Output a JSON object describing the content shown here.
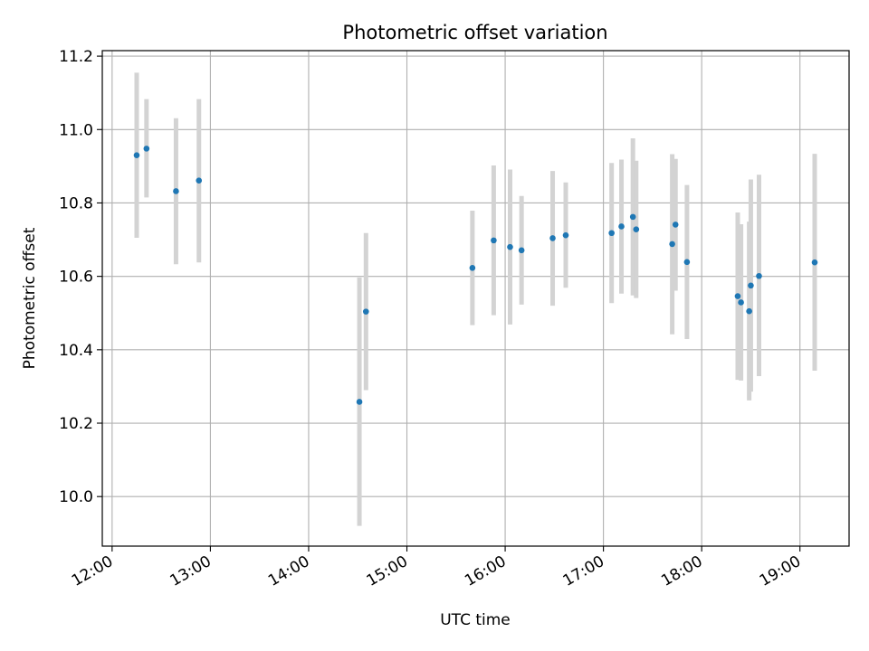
{
  "chart_data": {
    "type": "scatter",
    "title": "Photometric offset variation",
    "xlabel": "UTC time",
    "ylabel": "Photometric offset",
    "x_type": "time",
    "x_tick_labels": [
      "12:00",
      "13:00",
      "14:00",
      "15:00",
      "16:00",
      "17:00",
      "18:00",
      "19:00"
    ],
    "y_tick_labels": [
      "10.0",
      "10.2",
      "10.4",
      "10.6",
      "10.8",
      "11.0",
      "11.2"
    ],
    "xlim": [
      "11:54",
      "19:30"
    ],
    "ylim": [
      9.865,
      11.215
    ],
    "grid": true,
    "colors": {
      "point": "#1f77b4",
      "error_bar": "#d3d3d3",
      "grid": "#b0b0b0"
    },
    "points": [
      {
        "x": "12:15",
        "y": 10.93,
        "err_low": 10.705,
        "err_high": 11.155
      },
      {
        "x": "12:21",
        "y": 10.948,
        "err_low": 10.815,
        "err_high": 11.083
      },
      {
        "x": "12:39",
        "y": 10.832,
        "err_low": 10.633,
        "err_high": 11.031
      },
      {
        "x": "12:53",
        "y": 10.861,
        "err_low": 10.638,
        "err_high": 11.083
      },
      {
        "x": "14:31",
        "y": 10.258,
        "err_low": 9.92,
        "err_high": 10.597
      },
      {
        "x": "14:35",
        "y": 10.504,
        "err_low": 10.29,
        "err_high": 10.718
      },
      {
        "x": "15:40",
        "y": 10.623,
        "err_low": 10.467,
        "err_high": 10.779
      },
      {
        "x": "15:53",
        "y": 10.698,
        "err_low": 10.494,
        "err_high": 10.902
      },
      {
        "x": "16:03",
        "y": 10.68,
        "err_low": 10.469,
        "err_high": 10.891
      },
      {
        "x": "16:10",
        "y": 10.671,
        "err_low": 10.523,
        "err_high": 10.819
      },
      {
        "x": "16:29",
        "y": 10.704,
        "err_low": 10.52,
        "err_high": 10.887
      },
      {
        "x": "16:37",
        "y": 10.712,
        "err_low": 10.569,
        "err_high": 10.856
      },
      {
        "x": "17:05",
        "y": 10.718,
        "err_low": 10.527,
        "err_high": 10.909
      },
      {
        "x": "17:11",
        "y": 10.736,
        "err_low": 10.553,
        "err_high": 10.918
      },
      {
        "x": "17:18",
        "y": 10.762,
        "err_low": 10.548,
        "err_high": 10.976
      },
      {
        "x": "17:20",
        "y": 10.728,
        "err_low": 10.541,
        "err_high": 10.915
      },
      {
        "x": "17:42",
        "y": 10.688,
        "err_low": 10.442,
        "err_high": 10.933
      },
      {
        "x": "17:44",
        "y": 10.741,
        "err_low": 10.561,
        "err_high": 10.92
      },
      {
        "x": "17:51",
        "y": 10.639,
        "err_low": 10.429,
        "err_high": 10.849
      },
      {
        "x": "18:22",
        "y": 10.546,
        "err_low": 10.318,
        "err_high": 10.774
      },
      {
        "x": "18:24",
        "y": 10.529,
        "err_low": 10.316,
        "err_high": 10.742
      },
      {
        "x": "18:29",
        "y": 10.505,
        "err_low": 10.262,
        "err_high": 10.749
      },
      {
        "x": "18:30",
        "y": 10.575,
        "err_low": 10.286,
        "err_high": 10.864
      },
      {
        "x": "18:35",
        "y": 10.601,
        "err_low": 10.328,
        "err_high": 10.877
      },
      {
        "x": "19:09",
        "y": 10.638,
        "err_low": 10.343,
        "err_high": 10.934
      }
    ]
  }
}
